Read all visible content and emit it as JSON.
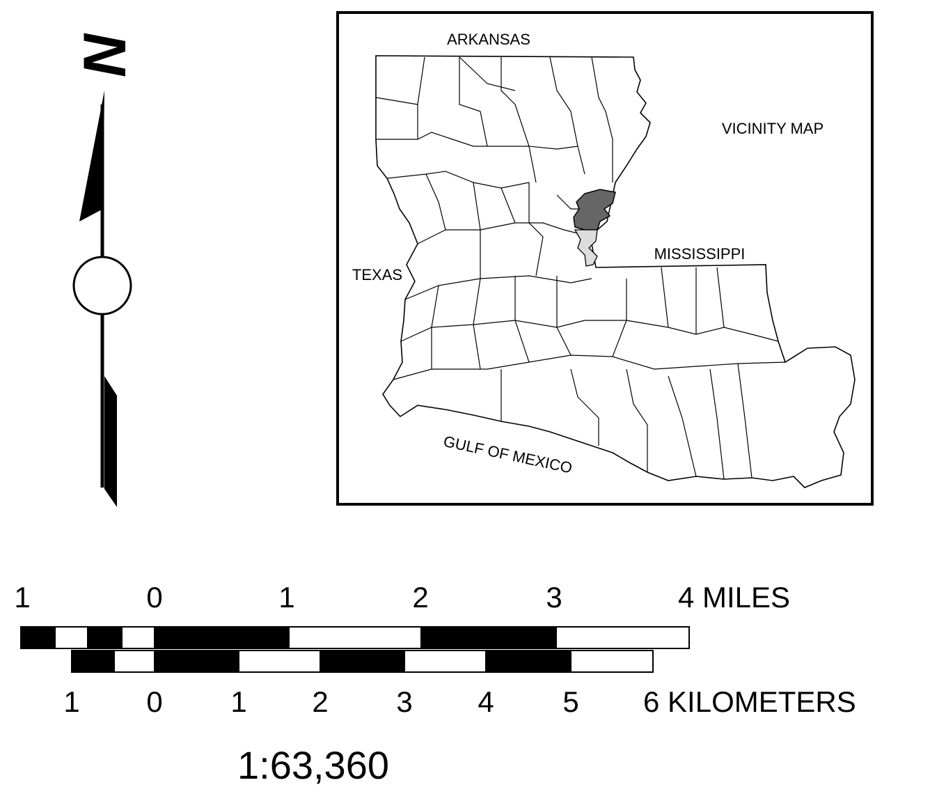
{
  "north_arrow": {
    "letter": "N"
  },
  "vicinity_map": {
    "title": "VICINITY MAP",
    "labels": {
      "north": "ARKANSAS",
      "west": "TEXAS",
      "east": "MISSISSIPPI",
      "south": "GULF OF MEXICO"
    },
    "colors": {
      "highlight_primary": "#666666",
      "highlight_secondary": "#dddddd",
      "outline": "#000000"
    }
  },
  "scale_bar": {
    "miles": {
      "ticks": [
        "1",
        "0",
        "1",
        "2",
        "3"
      ],
      "end_label": "4 MILES"
    },
    "kilometers": {
      "ticks": [
        "1",
        "0",
        "1",
        "2",
        "3",
        "4",
        "5"
      ],
      "end_label": "6 KILOMETERS"
    },
    "ratio": "1:63,360"
  }
}
